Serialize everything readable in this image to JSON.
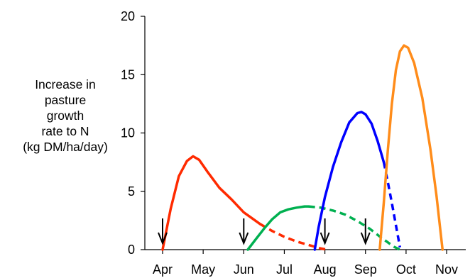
{
  "chart_data": {
    "type": "line",
    "title": "",
    "xlabel": "",
    "ylabel_lines": [
      "Increase in",
      "pasture",
      "growth",
      "rate to N",
      "(kg DM/ha/day)"
    ],
    "categories": [
      "Apr",
      "May",
      "Jun",
      "Jul",
      "Aug",
      "Sep",
      "Oct",
      "Nov"
    ],
    "ylim": [
      0,
      20
    ],
    "yticks": [
      "0",
      "5",
      "10",
      "15",
      "20"
    ],
    "grid": false,
    "legend": "none",
    "arrows_at": [
      "Apr",
      "Jun",
      "Aug",
      "Sep"
    ],
    "series": [
      {
        "color": "#ff2a00",
        "solid": [
          [
            0.0,
            0.0
          ],
          [
            0.2,
            3.5
          ],
          [
            0.4,
            6.3
          ],
          [
            0.6,
            7.6
          ],
          [
            0.75,
            8.0
          ],
          [
            0.9,
            7.7
          ],
          [
            1.1,
            6.7
          ],
          [
            1.4,
            5.3
          ],
          [
            1.7,
            4.3
          ],
          [
            2.0,
            3.2
          ],
          [
            2.2,
            2.7
          ],
          [
            2.4,
            2.2
          ]
        ],
        "dashed": [
          [
            2.4,
            2.2
          ],
          [
            2.7,
            1.6
          ],
          [
            3.0,
            1.1
          ],
          [
            3.3,
            0.7
          ],
          [
            3.6,
            0.4
          ],
          [
            3.9,
            0.1
          ],
          [
            4.05,
            0.0
          ]
        ]
      },
      {
        "color": "#00b050",
        "solid": [
          [
            2.1,
            0.0
          ],
          [
            2.3,
            0.9
          ],
          [
            2.5,
            1.8
          ],
          [
            2.7,
            2.6
          ],
          [
            2.9,
            3.2
          ],
          [
            3.1,
            3.45
          ],
          [
            3.3,
            3.6
          ],
          [
            3.5,
            3.7
          ],
          [
            3.6,
            3.7
          ]
        ],
        "dashed": [
          [
            3.6,
            3.7
          ],
          [
            3.9,
            3.6
          ],
          [
            4.2,
            3.35
          ],
          [
            4.5,
            3.0
          ],
          [
            4.8,
            2.45
          ],
          [
            5.1,
            1.8
          ],
          [
            5.4,
            1.0
          ],
          [
            5.7,
            0.25
          ],
          [
            5.85,
            0.0
          ]
        ]
      },
      {
        "color": "#0000ff",
        "solid": [
          [
            3.75,
            0.0
          ],
          [
            3.85,
            2.0
          ],
          [
            4.0,
            4.5
          ],
          [
            4.2,
            7.1
          ],
          [
            4.4,
            9.2
          ],
          [
            4.6,
            10.9
          ],
          [
            4.8,
            11.7
          ],
          [
            4.9,
            11.8
          ],
          [
            5.0,
            11.6
          ],
          [
            5.15,
            10.8
          ],
          [
            5.3,
            9.3
          ],
          [
            5.45,
            7.5
          ]
        ],
        "dashed": [
          [
            5.45,
            7.5
          ],
          [
            5.55,
            5.8
          ],
          [
            5.65,
            4.0
          ],
          [
            5.75,
            2.1
          ],
          [
            5.85,
            0.2
          ]
        ]
      },
      {
        "color": "#ff8c1a",
        "solid": [
          [
            5.35,
            0.0
          ],
          [
            5.45,
            4.0
          ],
          [
            5.55,
            8.5
          ],
          [
            5.65,
            12.5
          ],
          [
            5.75,
            15.4
          ],
          [
            5.85,
            17.0
          ],
          [
            5.95,
            17.5
          ],
          [
            6.05,
            17.3
          ],
          [
            6.2,
            16.0
          ],
          [
            6.4,
            13.0
          ],
          [
            6.6,
            8.6
          ],
          [
            6.75,
            4.6
          ],
          [
            6.85,
            1.5
          ],
          [
            6.9,
            0.0
          ]
        ],
        "dashed": []
      }
    ]
  }
}
